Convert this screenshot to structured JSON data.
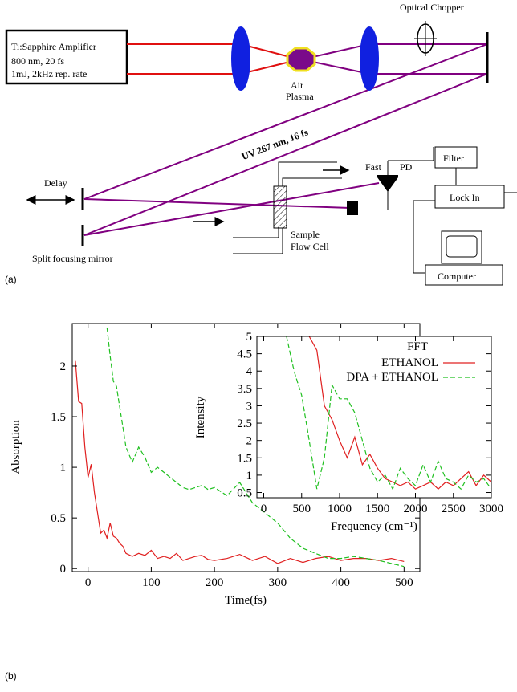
{
  "diagram": {
    "amplifier": [
      "Ti:Sapphire Amplifier",
      "800 nm, 20 fs",
      "1mJ, 2kHz rep. rate"
    ],
    "chopper": "Optical Chopper",
    "plasma": [
      "Air",
      "Plasma"
    ],
    "uv_beam": "UV 267 nm, 16 fs",
    "delay": "Delay",
    "mirror": "Split focusing mirror",
    "detector": [
      "Fast",
      "PD"
    ],
    "filter": "Filter",
    "lock_in": "Lock In",
    "sample": [
      "Sample",
      "Flow Cell"
    ],
    "computer": "Computer",
    "panel_a": "(a)",
    "panel_b": "(b)"
  },
  "chart_data": [
    {
      "type": "line",
      "x_label": "Time(fs)",
      "y_label": "Absorption",
      "x": [
        -20,
        -15,
        -10,
        -5,
        0,
        5,
        10,
        15,
        20,
        25,
        30,
        35,
        40,
        45,
        50,
        55,
        60,
        70,
        80,
        90,
        100,
        110,
        120,
        130,
        140,
        150,
        160,
        170,
        180,
        190,
        200,
        220,
        240,
        260,
        280,
        300,
        320,
        340,
        360,
        380,
        400,
        420,
        440,
        460,
        480,
        500
      ],
      "series": [
        {
          "color": "#e02020",
          "dashed": false,
          "values": [
            2.05,
            1.65,
            1.63,
            1.2,
            0.9,
            1.03,
            0.75,
            0.55,
            0.35,
            0.38,
            0.3,
            0.45,
            0.32,
            0.3,
            0.25,
            0.22,
            0.15,
            0.12,
            0.15,
            0.13,
            0.18,
            0.1,
            0.12,
            0.1,
            0.15,
            0.08,
            0.1,
            0.12,
            0.13,
            0.09,
            0.08,
            0.1,
            0.14,
            0.08,
            0.12,
            0.05,
            0.1,
            0.06,
            0.1,
            0.12,
            0.08,
            0.1,
            0.1,
            0.08,
            0.1,
            0.07
          ]
        },
        {
          "color": "#20c020",
          "dashed": true,
          "values": [
            null,
            null,
            null,
            null,
            null,
            null,
            null,
            null,
            null,
            null,
            2.38,
            2.1,
            1.85,
            1.8,
            1.6,
            1.4,
            1.2,
            1.05,
            1.2,
            1.1,
            0.95,
            1.0,
            0.95,
            0.9,
            0.85,
            0.8,
            0.78,
            0.8,
            0.82,
            0.78,
            0.8,
            0.72,
            0.85,
            0.65,
            0.55,
            0.45,
            0.3,
            0.2,
            0.15,
            0.1,
            0.1,
            0.12,
            0.1,
            0.08,
            0.05,
            0.02
          ]
        }
      ],
      "xlim": [
        -25,
        525
      ],
      "ylim": [
        -0.03,
        2.42
      ],
      "xticks": [
        0,
        100,
        200,
        300,
        400,
        500
      ],
      "yticks": [
        0,
        0.5,
        1,
        1.5,
        2
      ]
    },
    {
      "type": "line",
      "x_label": "Frequency (cm⁻¹)",
      "y_label": "Intensity",
      "legend_title": "FFT",
      "x": [
        300,
        400,
        500,
        600,
        700,
        800,
        900,
        1000,
        1100,
        1200,
        1300,
        1400,
        1500,
        1600,
        1700,
        1800,
        1900,
        2000,
        2100,
        2200,
        2300,
        2400,
        2500,
        2600,
        2700,
        2800,
        2900,
        3000
      ],
      "series": [
        {
          "name": "ETHANOL",
          "color": "#e02020",
          "dashed": false,
          "values": [
            null,
            null,
            null,
            5,
            4.6,
            3.0,
            2.6,
            2.0,
            1.5,
            2.1,
            1.3,
            1.6,
            1.2,
            0.9,
            0.8,
            0.7,
            0.8,
            0.6,
            0.7,
            0.8,
            0.6,
            0.8,
            0.7,
            0.9,
            1.1,
            0.7,
            1.0,
            0.8
          ]
        },
        {
          "name": "DPA + ETHANOL",
          "color": "#20c020",
          "dashed": true,
          "values": [
            5,
            4.0,
            3.3,
            2.0,
            0.6,
            1.5,
            3.6,
            3.2,
            3.2,
            2.8,
            2.0,
            1.2,
            0.8,
            1.0,
            0.6,
            1.2,
            0.9,
            0.7,
            1.3,
            0.8,
            1.4,
            0.9,
            0.8,
            0.6,
            1.0,
            0.8,
            0.9,
            0.6
          ]
        }
      ],
      "xlim": [
        -90,
        3000
      ],
      "ylim": [
        0.35,
        5
      ],
      "xticks": [
        0,
        500,
        1000,
        1500,
        2000,
        2500,
        3000
      ],
      "yticks": [
        0.5,
        1,
        1.5,
        2,
        2.5,
        3,
        3.5,
        4,
        4.5,
        5
      ]
    }
  ]
}
